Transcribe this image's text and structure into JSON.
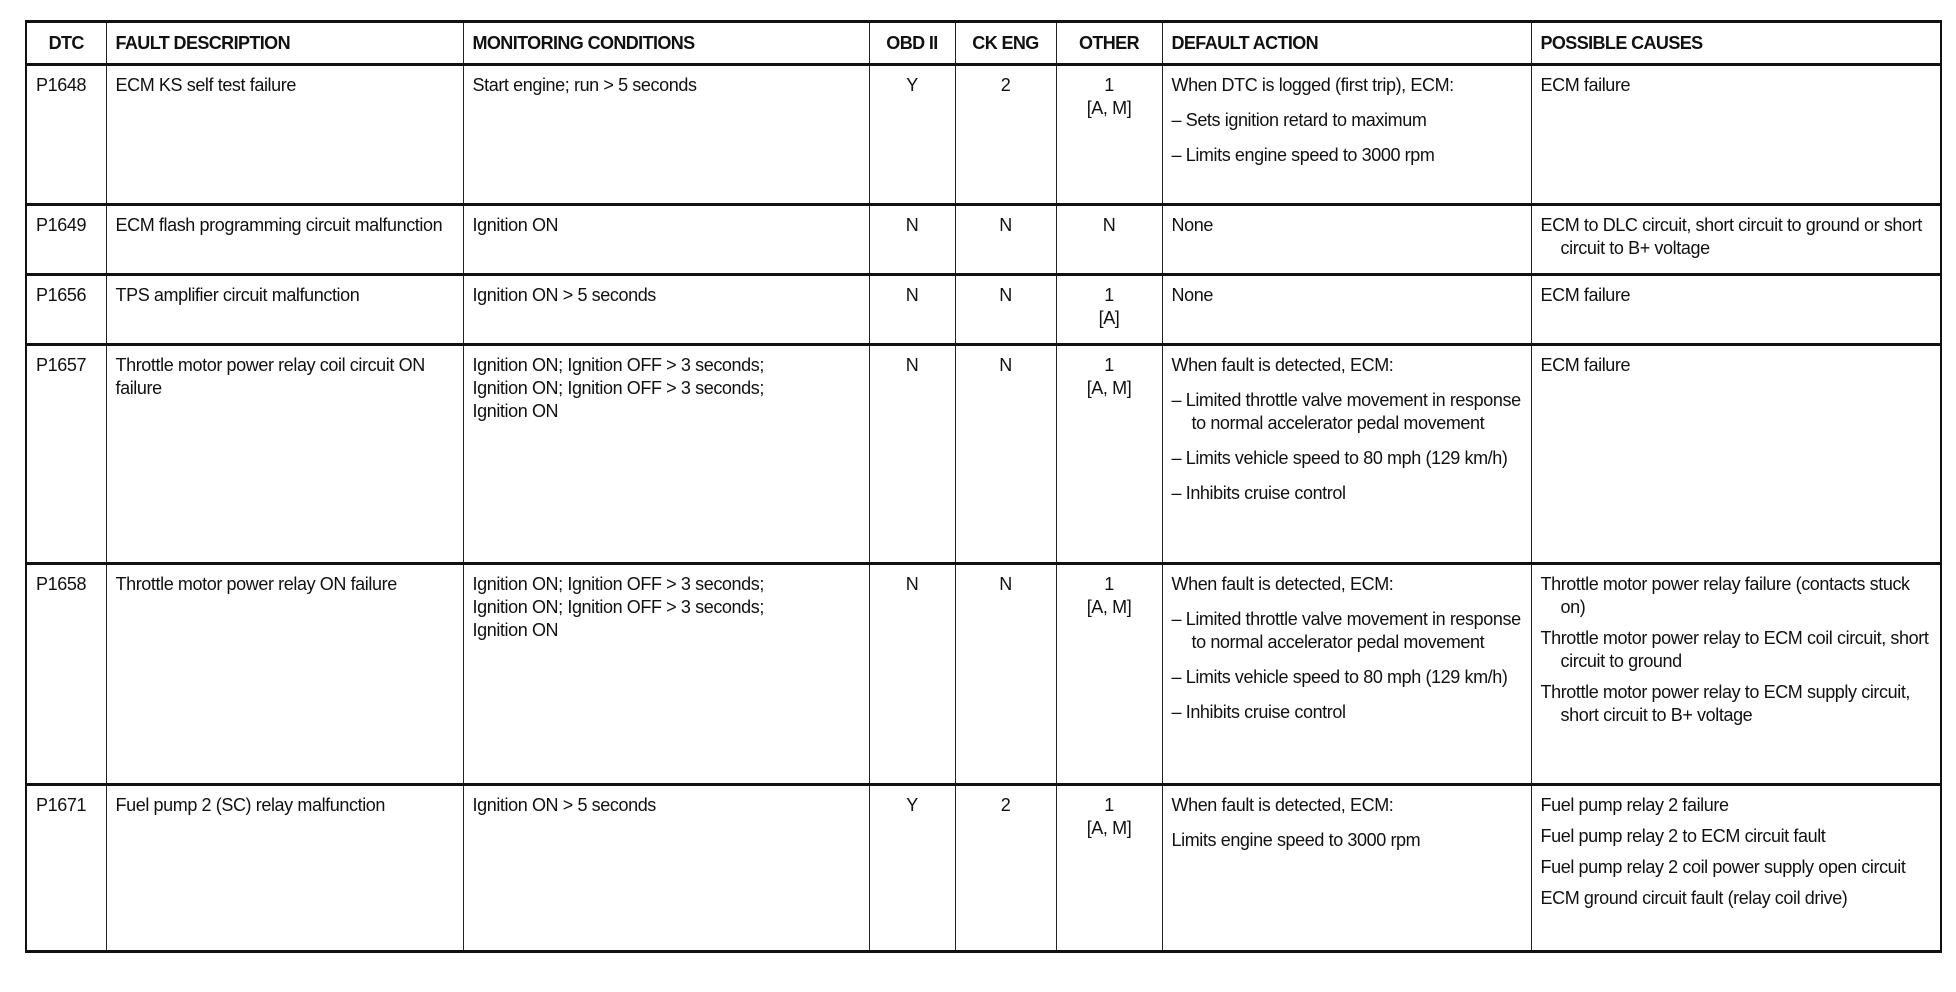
{
  "headers": [
    "DTC",
    "FAULT DESCRIPTION",
    "MONITORING CONDITIONS",
    "OBD II",
    "CK ENG",
    "OTHER",
    "DEFAULT ACTION",
    "POSSIBLE CAUSES"
  ],
  "rows": [
    {
      "dtc": "P1648",
      "fault": "ECM KS self test failure",
      "monitoring": [
        "Start engine; run > 5 seconds"
      ],
      "obd": "Y",
      "ck_eng": "2",
      "other": [
        "1",
        "[A, M]"
      ],
      "default_action": [
        {
          "text": "When DTC is logged (first trip), ECM:",
          "bullet": false
        },
        {
          "text": "– Sets ignition retard to maximum",
          "bullet": true
        },
        {
          "text": "– Limits engine speed to 3000 rpm",
          "bullet": true
        }
      ],
      "causes": [
        "ECM failure"
      ]
    },
    {
      "dtc": "P1649",
      "fault": "ECM flash programming circuit malfunction",
      "monitoring": [
        "Ignition ON"
      ],
      "obd": "N",
      "ck_eng": "N",
      "other": [
        "N"
      ],
      "default_action": [
        {
          "text": "None",
          "bullet": false
        }
      ],
      "causes": [
        "ECM to DLC circuit, short circuit to ground or short circuit to B+ voltage"
      ]
    },
    {
      "dtc": "P1656",
      "fault": "TPS amplifier circuit malfunction",
      "monitoring": [
        "Ignition ON > 5 seconds"
      ],
      "obd": "N",
      "ck_eng": "N",
      "other": [
        "1",
        "[A]"
      ],
      "default_action": [
        {
          "text": "None",
          "bullet": false
        }
      ],
      "causes": [
        "ECM failure"
      ]
    },
    {
      "dtc": "P1657",
      "fault": "Throttle motor power relay coil circuit ON failure",
      "monitoring": [
        "Ignition ON; Ignition OFF > 3 seconds;",
        "Ignition ON; Ignition OFF > 3 seconds;",
        "Ignition ON"
      ],
      "obd": "N",
      "ck_eng": "N",
      "other": [
        "1",
        "[A, M]"
      ],
      "default_action": [
        {
          "text": "When fault is detected, ECM:",
          "bullet": false
        },
        {
          "text": "– Limited throttle valve movement in response to normal accelerator pedal movement",
          "bullet": true
        },
        {
          "text": "– Limits vehicle speed to 80 mph (129 km/h)",
          "bullet": true
        },
        {
          "text": "– Inhibits cruise control",
          "bullet": true
        }
      ],
      "causes": [
        "ECM failure"
      ]
    },
    {
      "dtc": "P1658",
      "fault": "Throttle motor power relay ON failure",
      "monitoring": [
        "Ignition ON; Ignition OFF > 3 seconds;",
        "Ignition ON; Ignition OFF > 3 seconds;",
        "Ignition ON"
      ],
      "obd": "N",
      "ck_eng": "N",
      "other": [
        "1",
        "[A, M]"
      ],
      "default_action": [
        {
          "text": "When fault is detected, ECM:",
          "bullet": false
        },
        {
          "text": "– Limited throttle valve movement in response to normal accelerator pedal movement",
          "bullet": true
        },
        {
          "text": "– Limits vehicle speed to 80 mph (129 km/h)",
          "bullet": true
        },
        {
          "text": "– Inhibits cruise control",
          "bullet": true
        }
      ],
      "causes": [
        "Throttle motor power relay failure (contacts stuck on)",
        "Throttle motor power relay to ECM coil circuit, short circuit to ground",
        "Throttle motor power relay to ECM supply circuit, short circuit to B+ voltage"
      ]
    },
    {
      "dtc": "P1671",
      "fault": "Fuel pump 2 (SC) relay malfunction",
      "monitoring": [
        "Ignition ON > 5 seconds"
      ],
      "obd": "Y",
      "ck_eng": "2",
      "other": [
        "1",
        "[A, M]"
      ],
      "default_action": [
        {
          "text": "When fault is detected, ECM:",
          "bullet": false
        },
        {
          "text": "Limits engine speed to 3000 rpm",
          "bullet": false
        }
      ],
      "causes": [
        "Fuel pump relay 2 failure",
        "Fuel pump relay 2 to ECM circuit fault",
        "Fuel pump relay 2 coil power supply open circuit",
        "ECM ground circuit fault (relay coil drive)"
      ]
    }
  ]
}
